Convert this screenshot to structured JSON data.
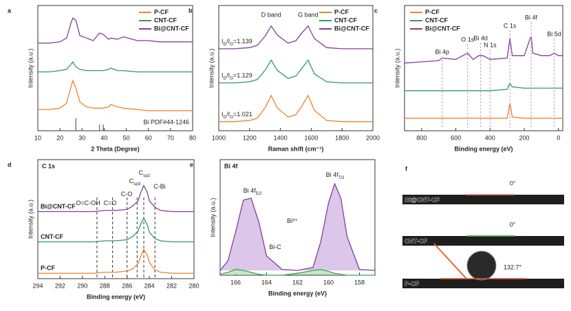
{
  "chart_data": [
    {
      "type": "line",
      "panel": "a",
      "xlabel": "2 Theta (Degree)",
      "ylabel": "Intensity (a.u.)",
      "xlim": [
        10,
        80
      ],
      "xticks": [
        10,
        20,
        30,
        40,
        50,
        60,
        70,
        80
      ],
      "ylim": [
        0,
        100
      ],
      "legend": "top-right",
      "x": [
        10,
        15,
        20,
        23,
        25,
        25.8,
        27.2,
        29,
        32,
        35,
        37.9,
        39.6,
        42,
        43,
        46,
        48.7,
        55,
        60,
        65,
        70,
        80
      ],
      "series": [
        {
          "name": "P-CF",
          "color": "#f0822d",
          "values": [
            17,
            17,
            18,
            22,
            35,
            40,
            34,
            23,
            19,
            18,
            18,
            18,
            19,
            21,
            19,
            18,
            17,
            16,
            16,
            16,
            16
          ]
        },
        {
          "name": "CNT-CF",
          "color": "#2f9a5e",
          "values": [
            47,
            47,
            48,
            49,
            53,
            55,
            51,
            49,
            48,
            48,
            48,
            48,
            49,
            50,
            48,
            48,
            47,
            47,
            47,
            47,
            47
          ]
        },
        {
          "name": "Bi@CNT-CF",
          "color": "#7e3f98",
          "values": [
            70,
            70,
            71,
            74,
            86,
            90,
            88,
            76,
            74,
            72,
            78,
            77,
            73,
            74,
            73,
            75,
            72,
            72,
            71,
            71,
            71
          ]
        }
      ],
      "reference": {
        "label": "Bi PDF#44-1246",
        "color": "#7e3f98",
        "x": [
          27.2,
          37.9,
          39.6
        ],
        "values": [
          10,
          5,
          5
        ]
      }
    },
    {
      "type": "line",
      "panel": "b",
      "xlabel": "Raman shift (cm⁻¹)",
      "ylabel": "Intensity (a.u.)",
      "xlim": [
        1000,
        2000
      ],
      "xticks": [
        1000,
        1200,
        1400,
        1600,
        1800,
        2000
      ],
      "ylim": [
        0,
        110
      ],
      "legend": "top-right",
      "x": [
        1000,
        1100,
        1200,
        1250,
        1300,
        1340,
        1380,
        1450,
        1500,
        1540,
        1580,
        1620,
        1700,
        1800,
        1900,
        2000
      ],
      "series": [
        {
          "name": "P-CF",
          "color": "#f0822d",
          "values": [
            8,
            8,
            9,
            11,
            20,
            31,
            20,
            12,
            14,
            22,
            31,
            18,
            9,
            8,
            8,
            8
          ]
        },
        {
          "name": "CNT-CF",
          "color": "#2f9a5e",
          "values": [
            42,
            42,
            43,
            45,
            53,
            62,
            53,
            46,
            48,
            55,
            62,
            50,
            43,
            42,
            42,
            42
          ]
        },
        {
          "name": "Bi@CNT-CF",
          "color": "#7e3f98",
          "values": [
            72,
            72,
            73,
            75,
            83,
            92,
            84,
            77,
            79,
            86,
            92,
            81,
            73,
            72,
            72,
            72
          ]
        }
      ],
      "band_labels": [
        {
          "label": "D band",
          "x": 1340
        },
        {
          "label": "G band",
          "x": 1580
        }
      ],
      "ratio_labels": [
        [
          "I",
          "D",
          "/I",
          "G",
          "=1.021"
        ],
        [
          "I",
          "D",
          "/I",
          "G",
          "=1.129"
        ],
        [
          "I",
          "D",
          "/I",
          "G",
          "=1.139"
        ]
      ]
    },
    {
      "type": "line",
      "panel": "c",
      "xlabel": "Binding energy (eV)",
      "ylabel": "Intensity (a.u.)",
      "xlim": [
        900,
        -25
      ],
      "xticks": [
        800,
        600,
        400,
        200,
        0
      ],
      "ylim": [
        0,
        100
      ],
      "legend": "top-left",
      "x": [
        900,
        800,
        700,
        680,
        600,
        531,
        500,
        465,
        442,
        400,
        300,
        284,
        270,
        200,
        165,
        159,
        150,
        100,
        50,
        25,
        0,
        -25
      ],
      "series": [
        {
          "name": "P-CF",
          "color": "#f0822d",
          "values": [
            10,
            10,
            10,
            10,
            10,
            10,
            10,
            10,
            10,
            10,
            10,
            22,
            11,
            10,
            10,
            10,
            10,
            10,
            10,
            10,
            10,
            10
          ]
        },
        {
          "name": "CNT-CF",
          "color": "#2f9a5e",
          "values": [
            32,
            32,
            32,
            32,
            32,
            32,
            32,
            32,
            32,
            32,
            33,
            38,
            35,
            34,
            34,
            34,
            34,
            34,
            34,
            34,
            34,
            34
          ]
        },
        {
          "name": "Bi@CNT-CF",
          "color": "#7e3f98",
          "values": [
            54,
            55,
            56,
            58,
            57,
            62,
            57,
            60,
            60,
            57,
            58,
            74,
            60,
            60,
            74,
            75,
            62,
            60,
            60,
            62,
            60,
            60
          ]
        }
      ],
      "peaks": [
        {
          "label": "Bi 4p",
          "x": 680
        },
        {
          "label": "O 1s",
          "x": 531
        },
        {
          "label": "Bi 4d",
          "x": 455
        },
        {
          "label": "N 1s",
          "x": 400
        },
        {
          "label": "C 1s",
          "x": 284
        },
        {
          "label": "Bi 4f",
          "x": 160
        },
        {
          "label": "Bi 5d",
          "x": 25
        }
      ]
    },
    {
      "type": "line",
      "panel": "d",
      "title": "C 1s",
      "xlabel": "Binding energy (eV)",
      "ylabel": "Intensity (a.u.)",
      "xlim": [
        294,
        280
      ],
      "xticks": [
        294,
        292,
        290,
        288,
        286,
        284,
        282,
        280
      ],
      "ylim": [
        0,
        110
      ],
      "inline_names": true,
      "x": [
        294,
        290,
        289,
        288,
        287,
        286,
        285.5,
        285,
        284.8,
        284.5,
        284.2,
        284,
        283.5,
        283,
        282,
        280
      ],
      "series": [
        {
          "name": "P-CF",
          "color": "#f0822d",
          "values": [
            5,
            5,
            5,
            6,
            6,
            7,
            9,
            14,
            20,
            27,
            22,
            15,
            8,
            6,
            5,
            5
          ]
        },
        {
          "name": "CNT-CF",
          "color": "#2f9a5e",
          "values": [
            34,
            34,
            34,
            35,
            35,
            36,
            39,
            44,
            50,
            56,
            50,
            43,
            37,
            35,
            34,
            34
          ]
        },
        {
          "name": "Bi@CNT-CF",
          "color": "#7e3f98",
          "values": [
            62,
            62,
            62,
            63,
            63,
            64,
            67,
            72,
            79,
            86,
            80,
            72,
            66,
            63,
            62,
            62
          ]
        }
      ],
      "vlines": [
        288.7,
        287.3,
        286.0,
        285.1,
        284.5,
        283.5
      ],
      "peak_labels": [
        {
          "text": "C",
          "sub": "sp2",
          "color": "#a07cc5"
        },
        {
          "text": "C",
          "sub": "sp3",
          "color": "#4a6fd0"
        },
        {
          "text": "C-O",
          "color": "#e0554f"
        },
        {
          "text": "C-Bi",
          "color": "#3aa655"
        },
        {
          "text": "O=C-OH",
          "color": "#b8d8a8"
        },
        {
          "text": "C=O",
          "color": "#f2b49a"
        }
      ]
    },
    {
      "type": "line",
      "panel": "e",
      "title": "Bi 4f",
      "xlabel": "Binding energy (eV)",
      "ylabel": "Intensity (a.u.)",
      "xlim": [
        167,
        157
      ],
      "xticks": [
        166,
        164,
        162,
        160,
        158
      ],
      "ylim": [
        0,
        120
      ],
      "x": [
        167,
        166.5,
        166,
        165.5,
        165,
        164.5,
        164,
        163,
        162,
        161,
        160.5,
        160,
        159.6,
        159.2,
        158.8,
        158,
        157
      ],
      "series": [
        {
          "color": "#7e3f98",
          "fill": "#dcc6ea",
          "values": [
            5,
            15,
            45,
            78,
            80,
            55,
            20,
            6,
            5,
            8,
            35,
            75,
            95,
            80,
            40,
            6,
            5
          ]
        },
        {
          "color": "#3aa655",
          "fill": "#c4e6c6",
          "values": [
            1,
            3,
            6,
            5,
            3,
            1,
            0,
            0,
            2,
            5,
            6,
            4,
            2,
            1,
            0,
            0,
            0
          ]
        }
      ],
      "peak_labels": [
        {
          "text": "Bi 4f",
          "sub": "5/2",
          "color": "#a07cc5"
        },
        {
          "text": "Bi 4f",
          "sub": "7/2",
          "color": "#a07cc5"
        },
        {
          "text": "Bi³⁺",
          "color": "#a07cc5"
        },
        {
          "text": "Bi-C",
          "color": "#3aa655"
        }
      ]
    },
    {
      "type": "contact_angle",
      "panel": "f",
      "samples": [
        {
          "name": "Bi@CNT-CF",
          "color": "#9b6cc4",
          "angle": 0,
          "angle_label": "0°",
          "angle_color": "#e8736b"
        },
        {
          "name": "CNT-CF",
          "color": "#2f9a5e",
          "angle": 0,
          "angle_label": "0°",
          "angle_color": "#3aa655"
        },
        {
          "name": "P-CF",
          "color": "#f0822d",
          "angle": 132.7,
          "angle_label": "132.7°",
          "angle_color": "#e5562a"
        }
      ]
    }
  ]
}
